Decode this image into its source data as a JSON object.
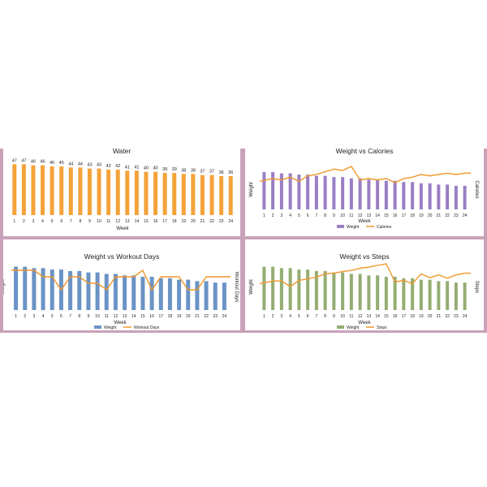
{
  "chart_data": [
    {
      "id": "water",
      "type": "bar",
      "title": "Water",
      "xlabel": "Week",
      "categories": [
        "1",
        "2",
        "3",
        "4",
        "5",
        "6",
        "7",
        "8",
        "9",
        "10",
        "11",
        "12",
        "13",
        "14",
        "15",
        "16",
        "17",
        "18",
        "19",
        "20",
        "21",
        "22",
        "23",
        "24"
      ],
      "series": [
        {
          "values": [
            47,
            47,
            46,
            46,
            45,
            45,
            44,
            44,
            43,
            43,
            42,
            42,
            41,
            41,
            40,
            40,
            39,
            39,
            38,
            38,
            37,
            37,
            36,
            36
          ]
        }
      ],
      "ylim": [
        0,
        48
      ],
      "data_labels": true,
      "bar_color": "#f4a23a"
    },
    {
      "id": "weight_vs_calories",
      "type": "bar",
      "title": "Weight vs Calories",
      "xlabel": "Week",
      "ylabel": "Weight",
      "y2label": "Calories",
      "categories": [
        "1",
        "2",
        "3",
        "4",
        "5",
        "6",
        "7",
        "8",
        "9",
        "10",
        "11",
        "12",
        "13",
        "14",
        "15",
        "16",
        "17",
        "18",
        "19",
        "20",
        "21",
        "22",
        "23",
        "24"
      ],
      "series": [
        {
          "name": "Weight",
          "kind": "bar",
          "color": "#9a7ec5",
          "values": [
            190,
            190,
            189,
            189,
            188,
            188,
            187,
            187,
            186,
            186,
            185,
            185,
            184,
            184,
            183,
            183,
            182,
            182,
            181,
            181,
            180,
            180,
            179,
            179
          ]
        },
        {
          "name": "Calories",
          "kind": "line",
          "color": "#f0962a",
          "values": [
            2050,
            2150,
            2100,
            2200,
            2050,
            2250,
            2300,
            2400,
            2500,
            2450,
            2600,
            2100,
            2150,
            2100,
            2150,
            2000,
            2150,
            2200,
            2300,
            2250,
            2300,
            2350,
            2300,
            2350
          ]
        }
      ],
      "legend": "bottom"
    },
    {
      "id": "weight_vs_workout_days",
      "type": "bar",
      "title": "Weight vs Workout Days",
      "xlabel": "Week",
      "ylabel": "Weight",
      "y2label": "Workout Days",
      "categories": [
        "1",
        "2",
        "3",
        "4",
        "5",
        "6",
        "7",
        "8",
        "9",
        "10",
        "11",
        "12",
        "13",
        "14",
        "15",
        "16",
        "17",
        "18",
        "19",
        "20",
        "21",
        "22",
        "23",
        "24"
      ],
      "series": [
        {
          "name": "Weight",
          "kind": "bar",
          "color": "#6b93c6",
          "values": [
            190,
            190,
            189,
            189,
            188,
            188,
            187,
            187,
            186,
            186,
            185,
            185,
            184,
            184,
            183,
            183,
            182,
            182,
            181,
            181,
            180,
            180,
            179,
            179
          ]
        },
        {
          "name": "Workout Days",
          "kind": "line",
          "color": "#f0962a",
          "values": [
            5,
            5,
            5,
            4,
            4,
            2,
            4,
            4,
            3,
            3,
            2,
            4,
            4,
            4,
            5,
            2,
            4,
            4,
            4,
            2,
            2,
            4,
            4,
            4
          ]
        }
      ],
      "legend": "bottom"
    },
    {
      "id": "weight_vs_steps",
      "type": "bar",
      "title": "Weight vs Steps",
      "xlabel": "Week",
      "ylabel": "Weight",
      "y2label": "Steps",
      "categories": [
        "1",
        "2",
        "3",
        "4",
        "5",
        "6",
        "7",
        "8",
        "9",
        "10",
        "11",
        "12",
        "13",
        "14",
        "15",
        "16",
        "17",
        "18",
        "19",
        "20",
        "21",
        "22",
        "23",
        "24"
      ],
      "series": [
        {
          "name": "Weight",
          "kind": "bar",
          "color": "#93ad72",
          "values": [
            190,
            190,
            189,
            189,
            188,
            188,
            187,
            187,
            186,
            186,
            185,
            185,
            184,
            184,
            183,
            183,
            182,
            182,
            181,
            181,
            180,
            180,
            179,
            179
          ]
        },
        {
          "name": "Steps",
          "kind": "line",
          "color": "#f0962a",
          "values": [
            5000,
            5500,
            5500,
            4500,
            5600,
            5900,
            6200,
            6800,
            6900,
            7200,
            7400,
            7800,
            8000,
            8300,
            8600,
            5300,
            5600,
            5000,
            6800,
            6100,
            6600,
            6000,
            6600,
            6900
          ]
        }
      ],
      "legend": "bottom"
    }
  ]
}
